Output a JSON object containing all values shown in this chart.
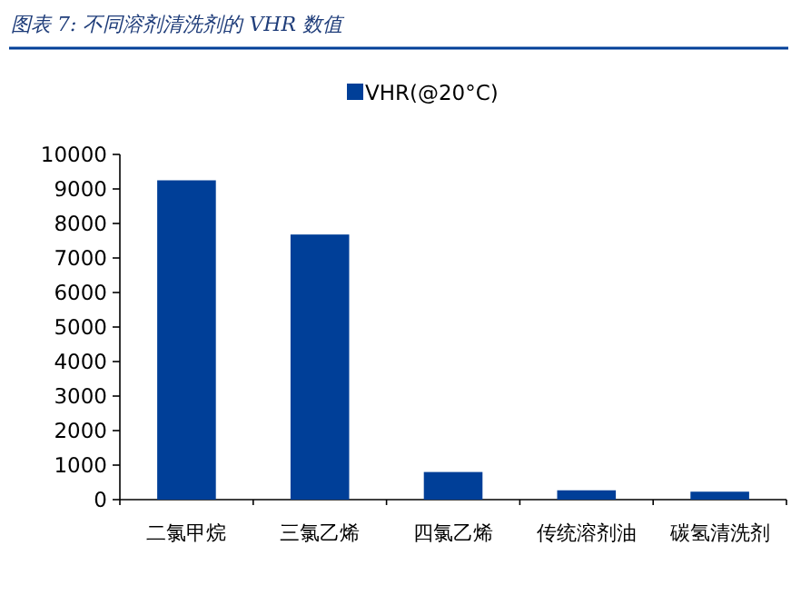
{
  "chart_data": {
    "type": "bar",
    "title": "图表 7:  不同溶剂清洗剂的 VHR 数值",
    "categories": [
      "二氯甲烷",
      "三氯乙烯",
      "四氯乙烯",
      "传统溶剂油",
      "碳氢清洗剂"
    ],
    "series": [
      {
        "name": "VHR(@20°C)",
        "color": "#003f98",
        "values": [
          9250,
          7680,
          800,
          270,
          230
        ]
      }
    ],
    "ylim": [
      0,
      10000
    ],
    "yticks": [
      0,
      1000,
      2000,
      3000,
      4000,
      5000,
      6000,
      7000,
      8000,
      9000,
      10000
    ],
    "grid": false,
    "legend": "top"
  }
}
